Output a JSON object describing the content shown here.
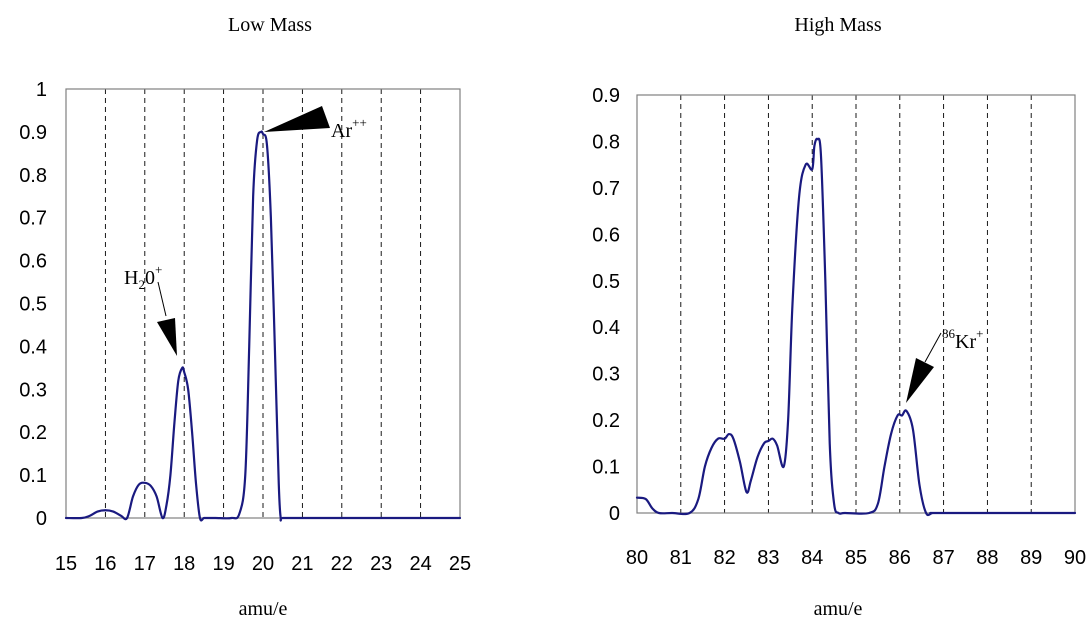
{
  "chart_data": [
    {
      "type": "line",
      "title": "Low Mass",
      "xlabel": "amu/e",
      "ylabel": "",
      "xlim": [
        15,
        25
      ],
      "ylim": [
        0,
        1
      ],
      "xticks": [
        "15",
        "16",
        "17",
        "18",
        "19",
        "20",
        "21",
        "22",
        "23",
        "24",
        "25"
      ],
      "yticks": [
        "0",
        "0.1",
        "0.2",
        "0.3",
        "0.4",
        "0.5",
        "0.6",
        "0.7",
        "0.8",
        "0.9",
        "1"
      ],
      "grid": "vertical dashed at each integer",
      "series": [
        {
          "color": "#1a1a80",
          "x": [
            15,
            15.4,
            15.6,
            15.8,
            16.0,
            16.2,
            16.4,
            16.55,
            16.7,
            16.85,
            17.0,
            17.15,
            17.3,
            17.45,
            17.55,
            17.65,
            17.75,
            17.85,
            17.95,
            18.0,
            18.1,
            18.2,
            18.3,
            18.4,
            18.5,
            18.6,
            18.8,
            19.2,
            19.4,
            19.55,
            19.65,
            19.75,
            19.85,
            19.95,
            20.0,
            20.1,
            20.2,
            20.3,
            20.4,
            20.45,
            20.5,
            21,
            25
          ],
          "y": [
            0.0,
            0.0,
            0.005,
            0.015,
            0.018,
            0.015,
            0.005,
            0.0,
            0.05,
            0.078,
            0.082,
            0.075,
            0.05,
            0.0,
            0.03,
            0.1,
            0.22,
            0.32,
            0.35,
            0.34,
            0.3,
            0.2,
            0.08,
            0.0,
            0.0,
            0.0,
            0.0,
            0.0,
            0.01,
            0.1,
            0.4,
            0.75,
            0.88,
            0.9,
            0.895,
            0.87,
            0.7,
            0.4,
            0.08,
            0.0,
            0.0,
            0.0,
            0.0
          ]
        }
      ],
      "annotations": [
        {
          "label": "Ar",
          "sup": "++",
          "x": 20,
          "y": 0.9
        },
        {
          "label": "H",
          "sub": "2",
          "label2": "0",
          "sup": "+",
          "x": 18,
          "y": 0.35
        }
      ]
    },
    {
      "type": "line",
      "title": "High Mass",
      "xlabel": "amu/e",
      "ylabel": "",
      "xlim": [
        80,
        90
      ],
      "ylim": [
        0,
        0.9
      ],
      "xticks": [
        "80",
        "81",
        "82",
        "83",
        "84",
        "85",
        "86",
        "87",
        "88",
        "89",
        "90"
      ],
      "yticks": [
        "0",
        "0.1",
        "0.2",
        "0.3",
        "0.4",
        "0.5",
        "0.6",
        "0.7",
        "0.8",
        "0.9"
      ],
      "grid": "vertical dashed at each integer",
      "series": [
        {
          "color": "#1a1a80",
          "x": [
            80.0,
            80.2,
            80.35,
            80.5,
            80.8,
            81.2,
            81.4,
            81.55,
            81.7,
            81.85,
            82.0,
            82.1,
            82.2,
            82.35,
            82.5,
            82.6,
            82.75,
            82.9,
            83.0,
            83.1,
            83.2,
            83.35,
            83.45,
            83.55,
            83.7,
            83.85,
            84.0,
            84.05,
            84.12,
            84.2,
            84.3,
            84.4,
            84.5,
            84.6,
            84.75,
            85.3,
            85.5,
            85.65,
            85.8,
            85.95,
            86.05,
            86.15,
            86.3,
            86.45,
            86.6,
            86.75,
            87,
            90
          ],
          "y": [
            0.033,
            0.03,
            0.01,
            0.0,
            0.0,
            0.0,
            0.03,
            0.1,
            0.14,
            0.16,
            0.16,
            0.17,
            0.16,
            0.11,
            0.045,
            0.07,
            0.12,
            0.15,
            0.155,
            0.16,
            0.145,
            0.1,
            0.2,
            0.45,
            0.68,
            0.75,
            0.74,
            0.79,
            0.805,
            0.77,
            0.5,
            0.15,
            0.02,
            0.0,
            0.0,
            0.0,
            0.02,
            0.1,
            0.17,
            0.21,
            0.21,
            0.22,
            0.18,
            0.06,
            0.0,
            0.0,
            0.0,
            0.0
          ]
        }
      ],
      "annotations": [
        {
          "presup": "86",
          "label": "Kr",
          "sup": "+",
          "x": 86.1,
          "y": 0.22
        }
      ]
    }
  ]
}
